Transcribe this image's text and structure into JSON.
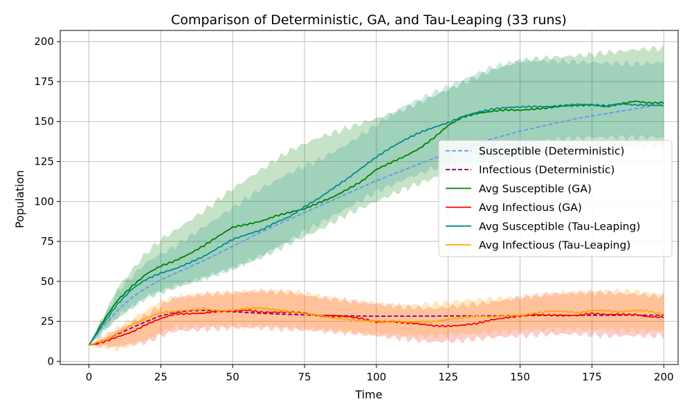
{
  "chart_data": {
    "type": "line",
    "title": "Comparison of Deterministic, GA, and Tau-Leaping (33 runs)",
    "xlabel": "Time",
    "ylabel": "Population",
    "xlim": [
      -10,
      205
    ],
    "ylim": [
      -2,
      207
    ],
    "xticks": [
      0,
      25,
      50,
      75,
      100,
      125,
      150,
      175,
      200
    ],
    "yticks": [
      0,
      25,
      50,
      75,
      100,
      125,
      150,
      175,
      200
    ],
    "grid": true,
    "legend_position": "center-right",
    "series": [
      {
        "name": "Susceptible (Deterministic)",
        "color": "#6495ED",
        "dash": "dashed",
        "x": [
          0,
          5,
          10,
          15,
          20,
          25,
          30,
          40,
          50,
          60,
          70,
          80,
          90,
          100,
          110,
          120,
          130,
          140,
          150,
          160,
          170,
          180,
          190,
          200
        ],
        "y": [
          10,
          22,
          32,
          40,
          46,
          51,
          55,
          63,
          72,
          81,
          89,
          97,
          105,
          113,
          120,
          127,
          133,
          139,
          144,
          148,
          152,
          155,
          158,
          161
        ]
      },
      {
        "name": "Infectious (Deterministic)",
        "color": "#800080",
        "dash": "dashed",
        "x": [
          0,
          5,
          10,
          15,
          20,
          25,
          30,
          35,
          40,
          50,
          60,
          70,
          80,
          100,
          120,
          140,
          160,
          180,
          200
        ],
        "y": [
          10,
          13,
          17,
          21,
          25,
          28.5,
          30.5,
          31.5,
          31.8,
          31,
          30,
          29.3,
          28.7,
          28.2,
          28.3,
          28.5,
          28.7,
          28.8,
          28.9
        ]
      },
      {
        "name": "Avg Susceptible (GA)",
        "color": "#008000",
        "dash": "solid",
        "x": [
          0,
          5,
          10,
          15,
          20,
          25,
          30,
          35,
          40,
          45,
          50,
          55,
          60,
          65,
          70,
          75,
          80,
          85,
          90,
          95,
          100,
          105,
          110,
          115,
          120,
          125,
          130,
          135,
          140,
          145,
          150,
          155,
          160,
          165,
          170,
          175,
          180,
          185,
          190,
          195,
          200
        ],
        "y": [
          10,
          25,
          38,
          47,
          55,
          60,
          63,
          67,
          72,
          78,
          84,
          86,
          88,
          91,
          93,
          95,
          99,
          103,
          108,
          113,
          120,
          124,
          128,
          133,
          140,
          148,
          153,
          155,
          156,
          157,
          157,
          158,
          159,
          160,
          160,
          160,
          159,
          161,
          163,
          162,
          162
        ]
      },
      {
        "name": "Avg Infectious (GA)",
        "color": "#FF0000",
        "dash": "solid",
        "x": [
          0,
          5,
          10,
          15,
          20,
          25,
          30,
          35,
          40,
          45,
          50,
          55,
          60,
          65,
          70,
          75,
          80,
          85,
          90,
          95,
          100,
          105,
          110,
          115,
          120,
          125,
          130,
          135,
          140,
          145,
          150,
          155,
          160,
          165,
          170,
          175,
          180,
          185,
          190,
          195,
          200
        ],
        "y": [
          10,
          12,
          15,
          18,
          23,
          27,
          30,
          30,
          30,
          31,
          31,
          32,
          31,
          31,
          31,
          30,
          28,
          28,
          28,
          27,
          25,
          25,
          24,
          23,
          22,
          22,
          23,
          24,
          26,
          27,
          28,
          29,
          29,
          29,
          29,
          30,
          29,
          29,
          29,
          28,
          28
        ]
      },
      {
        "name": "Avg Susceptible (Tau-Leaping)",
        "color": "#008B8B",
        "dash": "solid",
        "x": [
          0,
          5,
          10,
          15,
          20,
          25,
          30,
          35,
          40,
          45,
          50,
          55,
          60,
          65,
          70,
          75,
          80,
          85,
          90,
          95,
          100,
          105,
          110,
          115,
          120,
          125,
          130,
          135,
          140,
          145,
          150,
          155,
          160,
          165,
          170,
          175,
          180,
          185,
          190,
          195,
          200
        ],
        "y": [
          10,
          24,
          36,
          45,
          51,
          55,
          58,
          62,
          66,
          71,
          76,
          79,
          82,
          87,
          91,
          97,
          102,
          108,
          114,
          121,
          128,
          134,
          139,
          143,
          146,
          149,
          153,
          156,
          158,
          159,
          159,
          159,
          159,
          160,
          161,
          161,
          160,
          161,
          160,
          160,
          160
        ]
      },
      {
        "name": "Avg Infectious (Tau-Leaping)",
        "color": "#FFA500",
        "dash": "solid",
        "x": [
          0,
          5,
          10,
          15,
          20,
          25,
          30,
          35,
          40,
          45,
          50,
          55,
          60,
          65,
          70,
          75,
          80,
          85,
          90,
          95,
          100,
          105,
          110,
          115,
          120,
          125,
          130,
          135,
          140,
          145,
          150,
          155,
          160,
          165,
          170,
          175,
          180,
          185,
          190,
          195,
          200
        ],
        "y": [
          10,
          13,
          18,
          23,
          27,
          30,
          31,
          32,
          33,
          32,
          32,
          33,
          33,
          32,
          31,
          30,
          29,
          27,
          26,
          25,
          25,
          25,
          25,
          25,
          25,
          26,
          27,
          28,
          28,
          29,
          29,
          30,
          31,
          31,
          30,
          32,
          32,
          31,
          32,
          31,
          29
        ]
      }
    ],
    "bands": [
      {
        "name": "GA Susceptible spread",
        "color": "#008000",
        "opacity": 0.22,
        "x": [
          0,
          10,
          20,
          25,
          30,
          40,
          50,
          60,
          70,
          80,
          90,
          100,
          110,
          125,
          140,
          150,
          160,
          175,
          190,
          200
        ],
        "lower": [
          10,
          27,
          40,
          43,
          46,
          52,
          58,
          65,
          74,
          82,
          92,
          100,
          108,
          118,
          124,
          127,
          130,
          132,
          134,
          135
        ],
        "upper": [
          10,
          46,
          68,
          76,
          82,
          94,
          108,
          120,
          132,
          140,
          146,
          152,
          158,
          170,
          182,
          188,
          190,
          192,
          195,
          196
        ]
      },
      {
        "name": "Tau Susceptible spread",
        "color": "#008B8B",
        "opacity": 0.2,
        "x": [
          0,
          10,
          20,
          25,
          30,
          40,
          50,
          60,
          70,
          80,
          90,
          100,
          110,
          125,
          140,
          150,
          160,
          175,
          190,
          200
        ],
        "lower": [
          10,
          28,
          40,
          44,
          47,
          52,
          58,
          66,
          76,
          86,
          96,
          106,
          114,
          124,
          132,
          136,
          138,
          140,
          140,
          140
        ],
        "upper": [
          10,
          44,
          62,
          67,
          72,
          84,
          96,
          108,
          118,
          126,
          136,
          148,
          160,
          172,
          184,
          188,
          188,
          187,
          186,
          187
        ]
      },
      {
        "name": "GA Infectious spread",
        "color": "#FF0000",
        "opacity": 0.2,
        "x": [
          0,
          10,
          20,
          25,
          30,
          40,
          50,
          60,
          70,
          80,
          90,
          100,
          110,
          120,
          130,
          140,
          150,
          160,
          170,
          180,
          190,
          200
        ],
        "lower": [
          10,
          9,
          12,
          16,
          19,
          20,
          21,
          21,
          20,
          19,
          18,
          16,
          14,
          12,
          13,
          15,
          16,
          17,
          17,
          16,
          16,
          16
        ],
        "upper": [
          10,
          20,
          29,
          35,
          40,
          42,
          43,
          44,
          43,
          40,
          38,
          36,
          34,
          33,
          35,
          37,
          40,
          42,
          43,
          43,
          42,
          41
        ]
      },
      {
        "name": "Tau Infectious spread",
        "color": "#FFA500",
        "opacity": 0.24,
        "x": [
          0,
          10,
          20,
          25,
          30,
          40,
          50,
          60,
          70,
          80,
          90,
          100,
          110,
          120,
          130,
          140,
          150,
          160,
          170,
          180,
          190,
          200
        ],
        "lower": [
          10,
          8,
          13,
          18,
          21,
          22,
          22,
          22,
          21,
          20,
          18,
          17,
          16,
          16,
          17,
          18,
          19,
          20,
          20,
          20,
          19,
          19
        ],
        "upper": [
          10,
          21,
          32,
          38,
          40,
          42,
          43,
          44,
          44,
          41,
          38,
          36,
          35,
          36,
          38,
          39,
          40,
          42,
          43,
          44,
          44,
          41
        ]
      }
    ]
  }
}
